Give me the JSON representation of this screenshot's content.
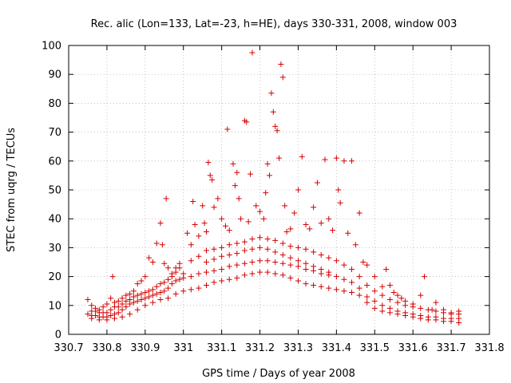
{
  "chart_data": {
    "type": "scatter",
    "title": "Rec. alic (Lon=133, Lat=-23, h=HE), days 330-331, 2008, window 003",
    "xlabel": "GPS time / Days of year 2008",
    "ylabel": "STEC from uqrg / TECUs",
    "xlim": [
      330.7,
      331.8
    ],
    "ylim": [
      0,
      100
    ],
    "xticks": [
      330.7,
      330.8,
      330.9,
      331.0,
      331.1,
      331.2,
      331.3,
      331.4,
      331.5,
      331.6,
      331.7,
      331.8
    ],
    "xtick_labels": [
      "330.7",
      "330.8",
      "330.9",
      "331",
      "331.1",
      "331.2",
      "331.3",
      "331.4",
      "331.5",
      "331.6",
      "331.7",
      "331.8"
    ],
    "yticks": [
      0,
      10,
      20,
      30,
      40,
      50,
      60,
      70,
      80,
      90,
      100
    ],
    "ytick_labels": [
      "0",
      "10",
      "20",
      "30",
      "40",
      "50",
      "60",
      "70",
      "80",
      "90",
      "100"
    ],
    "grid": true,
    "marker": "plus",
    "color": "#d40000",
    "series": [
      {
        "points": [
          [
            330.75,
            12.0
          ],
          [
            330.76,
            10.0
          ],
          [
            330.77,
            9.0
          ],
          [
            330.78,
            8.5
          ],
          [
            330.79,
            9.5
          ],
          [
            330.8,
            10.5
          ],
          [
            330.81,
            12.5
          ],
          [
            330.815,
            20.0
          ],
          [
            330.82,
            11.0
          ],
          [
            330.83,
            11.5
          ],
          [
            330.84,
            12.5
          ],
          [
            330.85,
            13.5
          ],
          [
            330.86,
            14.0
          ],
          [
            330.87,
            15.0
          ],
          [
            330.88,
            17.5
          ],
          [
            330.89,
            18.5
          ],
          [
            330.9,
            20.0
          ],
          [
            330.91,
            26.5
          ],
          [
            330.92,
            25.0
          ],
          [
            330.93,
            31.5
          ],
          [
            330.94,
            38.5
          ],
          [
            330.945,
            31.0
          ],
          [
            330.95,
            24.5
          ],
          [
            330.955,
            47.0
          ],
          [
            330.96,
            23.0
          ],
          [
            330.97,
            20.0
          ],
          [
            330.98,
            21.5
          ],
          [
            330.99,
            24.5
          ],
          [
            331.01,
            35.0
          ],
          [
            331.02,
            31.0
          ],
          [
            331.025,
            46.0
          ],
          [
            331.03,
            38.0
          ],
          [
            331.04,
            34.0
          ],
          [
            331.05,
            44.5
          ],
          [
            331.055,
            38.5
          ],
          [
            331.06,
            35.5
          ],
          [
            331.065,
            59.5
          ],
          [
            331.07,
            55.0
          ],
          [
            331.075,
            53.5
          ],
          [
            331.08,
            44.0
          ],
          [
            331.09,
            47.0
          ],
          [
            331.1,
            40.0
          ],
          [
            331.11,
            37.5
          ],
          [
            331.115,
            71.0
          ],
          [
            331.12,
            36.0
          ],
          [
            331.13,
            59.0
          ],
          [
            331.135,
            51.5
          ],
          [
            331.14,
            56.0
          ],
          [
            331.145,
            47.0
          ],
          [
            331.15,
            40.0
          ],
          [
            331.16,
            74.0
          ],
          [
            331.165,
            73.5
          ],
          [
            331.17,
            39.0
          ],
          [
            331.175,
            55.5
          ],
          [
            331.18,
            97.5
          ],
          [
            331.19,
            44.5
          ],
          [
            331.2,
            42.5
          ],
          [
            331.21,
            40.0
          ],
          [
            331.215,
            49.0
          ],
          [
            331.22,
            59.0
          ],
          [
            331.225,
            55.0
          ],
          [
            331.23,
            83.5
          ],
          [
            331.235,
            77.0
          ],
          [
            331.24,
            72.0
          ],
          [
            331.245,
            70.5
          ],
          [
            331.25,
            61.0
          ],
          [
            331.255,
            93.5
          ],
          [
            331.26,
            89.0
          ],
          [
            331.265,
            44.5
          ],
          [
            331.27,
            35.5
          ],
          [
            331.28,
            36.5
          ],
          [
            331.29,
            42.0
          ],
          [
            331.3,
            50.0
          ],
          [
            331.31,
            61.5
          ],
          [
            331.32,
            38.0
          ],
          [
            331.33,
            36.5
          ],
          [
            331.34,
            44.0
          ],
          [
            331.35,
            52.5
          ],
          [
            331.36,
            38.5
          ],
          [
            331.37,
            60.5
          ],
          [
            331.38,
            40.0
          ],
          [
            331.39,
            36.0
          ],
          [
            331.4,
            61.0
          ],
          [
            331.405,
            50.0
          ],
          [
            331.41,
            45.5
          ],
          [
            331.42,
            60.0
          ],
          [
            331.43,
            35.0
          ],
          [
            331.44,
            60.0
          ],
          [
            331.45,
            31.0
          ],
          [
            331.46,
            42.0
          ],
          [
            331.47,
            25.0
          ],
          [
            331.48,
            24.0
          ],
          [
            331.5,
            20.0
          ],
          [
            331.52,
            16.5
          ],
          [
            331.53,
            22.5
          ],
          [
            331.54,
            17.0
          ],
          [
            331.55,
            14.5
          ],
          [
            331.56,
            13.5
          ],
          [
            331.57,
            12.5
          ],
          [
            331.58,
            11.5
          ],
          [
            331.6,
            10.5
          ],
          [
            331.62,
            13.5
          ],
          [
            331.63,
            20.0
          ],
          [
            331.65,
            8.5
          ],
          [
            331.66,
            11.0
          ],
          [
            331.68,
            8.5
          ],
          [
            331.7,
            7.5
          ],
          [
            331.72,
            8.0
          ],
          [
            330.76,
            8.0
          ],
          [
            330.77,
            8.0
          ],
          [
            330.78,
            7.5
          ],
          [
            330.79,
            7.5
          ],
          [
            330.8,
            7.5
          ],
          [
            330.81,
            8.5
          ],
          [
            330.82,
            9.5
          ],
          [
            330.83,
            9.5
          ],
          [
            330.84,
            10.5
          ],
          [
            330.85,
            11.5
          ],
          [
            330.86,
            12.0
          ],
          [
            330.87,
            13.0
          ],
          [
            330.88,
            13.5
          ],
          [
            330.89,
            14.0
          ],
          [
            330.9,
            14.5
          ],
          [
            330.91,
            15.0
          ],
          [
            330.92,
            15.5
          ],
          [
            330.93,
            16.5
          ],
          [
            330.94,
            17.5
          ],
          [
            330.95,
            18.0
          ],
          [
            330.96,
            19.0
          ],
          [
            330.97,
            21.0
          ],
          [
            330.98,
            23.0
          ],
          [
            330.99,
            23.0
          ],
          [
            331.0,
            21.0
          ],
          [
            331.02,
            25.5
          ],
          [
            331.04,
            27.0
          ],
          [
            331.06,
            29.0
          ],
          [
            331.08,
            29.5
          ],
          [
            331.1,
            30.0
          ],
          [
            331.12,
            31.0
          ],
          [
            331.14,
            31.5
          ],
          [
            331.16,
            32.0
          ],
          [
            331.18,
            33.0
          ],
          [
            331.2,
            33.5
          ],
          [
            331.22,
            33.0
          ],
          [
            331.24,
            32.5
          ],
          [
            331.26,
            31.5
          ],
          [
            331.28,
            30.5
          ],
          [
            331.3,
            30.0
          ],
          [
            331.32,
            29.5
          ],
          [
            331.34,
            28.5
          ],
          [
            331.36,
            27.5
          ],
          [
            331.38,
            26.5
          ],
          [
            331.4,
            25.5
          ],
          [
            331.42,
            24.0
          ],
          [
            331.44,
            22.5
          ],
          [
            331.46,
            20.0
          ],
          [
            331.48,
            17.0
          ],
          [
            331.5,
            15.0
          ],
          [
            331.52,
            13.5
          ],
          [
            331.54,
            12.0
          ],
          [
            331.56,
            11.0
          ],
          [
            331.58,
            10.0
          ],
          [
            331.6,
            9.5
          ],
          [
            331.62,
            9.0
          ],
          [
            331.64,
            8.5
          ],
          [
            331.66,
            8.0
          ],
          [
            331.68,
            7.5
          ],
          [
            331.7,
            7.0
          ],
          [
            331.72,
            7.0
          ],
          [
            331.06,
            25.0
          ],
          [
            331.08,
            26.0
          ],
          [
            331.1,
            27.0
          ],
          [
            331.12,
            27.5
          ],
          [
            331.14,
            28.0
          ],
          [
            331.16,
            29.0
          ],
          [
            331.18,
            29.5
          ],
          [
            331.2,
            30.0
          ],
          [
            331.22,
            29.5
          ],
          [
            331.24,
            28.5
          ],
          [
            331.26,
            27.5
          ],
          [
            331.28,
            26.5
          ],
          [
            331.3,
            25.5
          ],
          [
            331.32,
            24.5
          ],
          [
            331.34,
            23.5
          ],
          [
            331.36,
            22.5
          ],
          [
            331.38,
            21.5
          ],
          [
            330.75,
            7.0
          ],
          [
            330.76,
            6.5
          ],
          [
            330.77,
            6.5
          ],
          [
            330.78,
            6.0
          ],
          [
            330.79,
            6.0
          ],
          [
            330.8,
            6.0
          ],
          [
            330.81,
            6.5
          ],
          [
            330.82,
            7.0
          ],
          [
            330.83,
            7.5
          ],
          [
            330.84,
            8.5
          ],
          [
            330.85,
            9.5
          ],
          [
            330.86,
            10.5
          ],
          [
            330.87,
            11.0
          ],
          [
            330.88,
            11.5
          ],
          [
            330.89,
            12.0
          ],
          [
            330.9,
            12.5
          ],
          [
            330.91,
            13.0
          ],
          [
            330.92,
            13.5
          ],
          [
            330.93,
            14.0
          ],
          [
            330.94,
            14.5
          ],
          [
            330.95,
            15.0
          ],
          [
            330.96,
            16.0
          ],
          [
            330.97,
            17.5
          ],
          [
            330.98,
            18.5
          ],
          [
            330.99,
            19.0
          ],
          [
            331.0,
            19.5
          ],
          [
            331.02,
            20.0
          ],
          [
            331.04,
            21.0
          ],
          [
            331.06,
            21.5
          ],
          [
            331.08,
            22.0
          ],
          [
            331.1,
            22.5
          ],
          [
            331.12,
            23.5
          ],
          [
            331.14,
            24.0
          ],
          [
            331.16,
            24.5
          ],
          [
            331.18,
            25.0
          ],
          [
            331.2,
            25.5
          ],
          [
            331.22,
            25.5
          ],
          [
            331.24,
            25.0
          ],
          [
            331.26,
            24.5
          ],
          [
            331.28,
            24.0
          ],
          [
            331.3,
            23.5
          ],
          [
            331.32,
            22.5
          ],
          [
            331.34,
            22.0
          ],
          [
            331.36,
            21.0
          ],
          [
            331.38,
            20.5
          ],
          [
            331.4,
            20.0
          ],
          [
            331.42,
            19.0
          ],
          [
            331.44,
            18.0
          ],
          [
            331.46,
            16.0
          ],
          [
            331.48,
            13.0
          ],
          [
            331.5,
            11.5
          ],
          [
            331.52,
            10.0
          ],
          [
            331.54,
            9.0
          ],
          [
            331.56,
            8.0
          ],
          [
            331.58,
            7.5
          ],
          [
            331.6,
            7.0
          ],
          [
            331.62,
            6.5
          ],
          [
            331.64,
            6.0
          ],
          [
            331.66,
            6.0
          ],
          [
            331.68,
            5.5
          ],
          [
            331.7,
            5.5
          ],
          [
            331.72,
            5.5
          ],
          [
            330.76,
            5.5
          ],
          [
            330.78,
            5.0
          ],
          [
            330.8,
            5.0
          ],
          [
            330.82,
            5.5
          ],
          [
            330.84,
            6.0
          ],
          [
            330.86,
            7.0
          ],
          [
            330.88,
            8.5
          ],
          [
            330.9,
            10.0
          ],
          [
            330.92,
            11.0
          ],
          [
            330.94,
            12.0
          ],
          [
            330.96,
            12.5
          ],
          [
            330.98,
            14.0
          ],
          [
            331.0,
            15.0
          ],
          [
            331.02,
            15.5
          ],
          [
            331.04,
            16.0
          ],
          [
            331.06,
            17.0
          ],
          [
            331.08,
            18.0
          ],
          [
            331.1,
            18.5
          ],
          [
            331.12,
            19.0
          ],
          [
            331.14,
            19.5
          ],
          [
            331.16,
            20.5
          ],
          [
            331.18,
            21.0
          ],
          [
            331.2,
            21.5
          ],
          [
            331.22,
            21.5
          ],
          [
            331.24,
            21.0
          ],
          [
            331.26,
            20.5
          ],
          [
            331.28,
            19.5
          ],
          [
            331.3,
            18.5
          ],
          [
            331.32,
            17.5
          ],
          [
            331.34,
            17.0
          ],
          [
            331.36,
            16.5
          ],
          [
            331.38,
            16.0
          ],
          [
            331.4,
            15.5
          ],
          [
            331.42,
            15.0
          ],
          [
            331.44,
            14.5
          ],
          [
            331.46,
            13.5
          ],
          [
            331.48,
            11.0
          ],
          [
            331.5,
            9.0
          ],
          [
            331.52,
            8.0
          ],
          [
            331.54,
            7.5
          ],
          [
            331.56,
            7.0
          ],
          [
            331.58,
            6.5
          ],
          [
            331.6,
            6.0
          ],
          [
            331.62,
            5.5
          ],
          [
            331.64,
            5.0
          ],
          [
            331.66,
            5.0
          ],
          [
            331.68,
            4.5
          ],
          [
            331.7,
            4.5
          ],
          [
            331.72,
            4.0
          ]
        ]
      }
    ]
  }
}
